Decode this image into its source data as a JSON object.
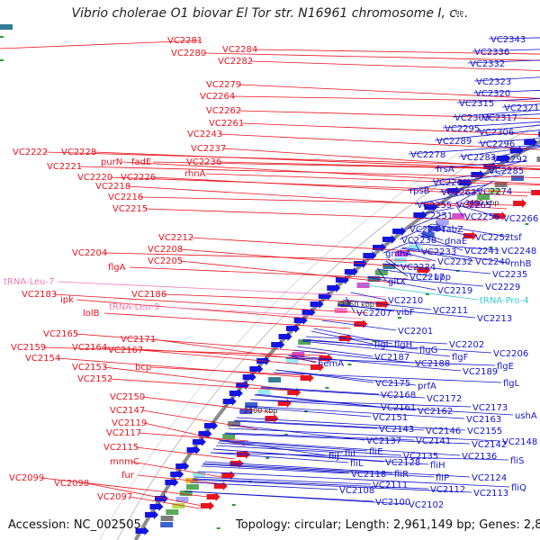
{
  "title": "Vibrio cholerae O1 biovar El Tor str. N16961 chromosome I, c...",
  "top_scale": "bp",
  "footer": {
    "accession": "Accession: NC_002505",
    "stats": "Topology: circular; Length: 2,961,149 bp; Genes: 2,860"
  },
  "colors": {
    "left_label": "#e8141e",
    "right_label": "#1414c8",
    "trna_left": "#f07ab4",
    "trna_right": "#3cc8d2",
    "forward_arrow": "#e8141e",
    "reverse_arrow": "#1414e0",
    "backbone": "#8c8c8c"
  },
  "kbp_marks": [
    {
      "label": "2450 kbp"
    },
    {
      "label": "2400 kbp"
    },
    {
      "label": "2350 kbp"
    },
    {
      "label": "2300 kbp"
    }
  ],
  "left_labels": [
    "VC2281",
    "VC2284",
    "VC2280",
    "VC2282",
    "VC2279",
    "VC2264",
    "VC2262",
    "VC2261",
    "VC2243",
    "VC2237",
    "VC2236",
    "rhnA",
    "VC2222",
    "VC2228",
    "purN",
    "fadE",
    "VC2221",
    "VC2220",
    "VC2226",
    "VC2218",
    "VC2216",
    "VC2215",
    "VC2212",
    "VC2208",
    "VC2205",
    "VC2204",
    "flgA",
    "tRNA-Leu-7",
    "VC2183",
    "ipk",
    "VC2186",
    "tRNA-Leu-9",
    "lolB",
    "VC2165",
    "VC2171",
    "VC2159",
    "VC2164",
    "VC2167",
    "VC2154",
    "VC2153",
    "bcp",
    "VC2152",
    "VC2150",
    "VC2147",
    "VC2119",
    "VC2117",
    "VC2115",
    "mnmC",
    "VC2099",
    "VC2098",
    "fur",
    "VC2097"
  ],
  "right_labels": [
    "VC2343",
    "VC2336",
    "VC2332",
    "VC2323",
    "VC2320",
    "VC2315",
    "VC2321",
    "VC2303",
    "VC2317",
    "VC2295",
    "VC2306",
    "VC2289",
    "VC2296",
    "VC2278",
    "VC2283",
    "VC2292",
    "frsA",
    "VC2285",
    "VC2269",
    "rpsB",
    "VC2263",
    "VC2274",
    "VC2255",
    "VC2265",
    "VC2251",
    "VC2256",
    "VC2266",
    "VC2244",
    "fabZ",
    "VC2252",
    "tsf",
    "VC2238",
    "dnaE",
    "gmhA",
    "VC2233",
    "VC2241",
    "VC2248",
    "VC2232",
    "VC2240",
    "rnhB",
    "VC2224",
    "VC2235",
    "gltX",
    "VC2217",
    "upp",
    "VC2229",
    "VC2219",
    "tRNA-Pro-4",
    "VC2210",
    "VC2211",
    "VC2213",
    "VC2207",
    "vibF",
    "VC2201",
    "flgI",
    "flgH",
    "VC2202",
    "flgG",
    "VC2206",
    "flgF",
    "hemA",
    "VC2187",
    "VC2188",
    "VC2189",
    "flgE",
    "flgL",
    "VC2175",
    "prfA",
    "VC2168",
    "VC2172",
    "VC2161",
    "VC2162",
    "VC2173",
    "VC2151",
    "VC2163",
    "ushA",
    "VC2143",
    "VC2146",
    "VC2155",
    "VC2137",
    "VC2141",
    "VC2142",
    "VC2148",
    "fliJ",
    "fliI",
    "fliE",
    "VC2135",
    "VC2136",
    "fliS",
    "fliL",
    "VC2128",
    "fliH",
    "VC2118",
    "fliR",
    "fliP",
    "VC2124",
    "VC2111",
    "VC2112",
    "VC2113",
    "fliQ",
    "VC2108",
    "VC2100",
    "VC2102"
  ]
}
